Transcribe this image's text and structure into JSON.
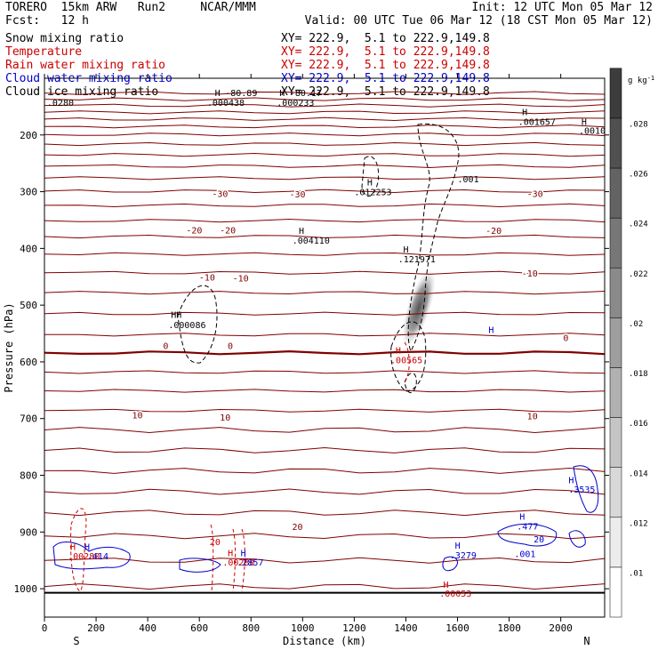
{
  "header": {
    "model": "TORERO",
    "grid": "15km ARW",
    "run": "Run2",
    "org": "NCAR/MMM",
    "init": "Init: 12 UTC Mon 05 Mar 12",
    "fcst": "Fcst:",
    "fcst_value": "12 h",
    "valid": "Valid: 00 UTC Tue 06 Mar 12 (18 CST Mon 05 Mar 12)"
  },
  "fields": [
    {
      "name": "Snow mixing ratio",
      "color": "#000000",
      "xy": "XY= 222.9,  5.1 to 222.9,149.8",
      "xy_color": "#000000"
    },
    {
      "name": "Temperature",
      "color": "#cc0000",
      "xy": "XY= 222.9,  5.1 to 222.9,149.8",
      "xy_color": "#cc0000"
    },
    {
      "name": "Rain water mixing ratio",
      "color": "#cc0000",
      "xy": "XY= 222.9,  5.1 to 222.9,149.8",
      "xy_color": "#cc0000"
    },
    {
      "name": "Cloud water mixing ratio",
      "color": "#0000cc",
      "xy": "XY= 222.9,  5.1 to 222.9,149.8",
      "xy_color": "#0000cc"
    },
    {
      "name": "Cloud ice mixing ratio",
      "color": "#000000",
      "xy": "XY= 222.9,  5.1 to 222.9,149.8",
      "xy_color": "#000000"
    }
  ],
  "chart_data": {
    "type": "contour cross-section",
    "xlabel": "Distance (km)",
    "ylabel": "Pressure (hPa)",
    "xlim": [
      0,
      2170
    ],
    "ylim": [
      1050,
      100
    ],
    "x_ticks": [
      0,
      200,
      400,
      600,
      800,
      1000,
      1200,
      1400,
      1600,
      1800,
      2000
    ],
    "y_ticks": [
      200,
      300,
      400,
      500,
      600,
      700,
      800,
      900,
      1000
    ],
    "left_end_label": "S",
    "right_end_label": "N",
    "colorbar": {
      "unit": "g kg",
      "unit_superscript": "-1",
      "ticks": [
        ".01",
        ".012",
        ".014",
        ".016",
        ".018",
        ".02",
        ".022",
        ".024",
        ".026",
        ".028"
      ]
    },
    "temperature_labels": [
      {
        "text": "-30",
        "x": 680,
        "p": 303
      },
      {
        "text": "-30",
        "x": 980,
        "p": 304
      },
      {
        "text": "-30",
        "x": 1900,
        "p": 303
      },
      {
        "text": "-20",
        "x": 580,
        "p": 367
      },
      {
        "text": "-20",
        "x": 710,
        "p": 367
      },
      {
        "text": "-20",
        "x": 1740,
        "p": 368
      },
      {
        "text": "-10",
        "x": 630,
        "p": 450
      },
      {
        "text": "-10",
        "x": 760,
        "p": 452
      },
      {
        "text": "-10",
        "x": 1880,
        "p": 443
      },
      {
        "text": "0",
        "x": 470,
        "p": 571
      },
      {
        "text": "0",
        "x": 720,
        "p": 571
      },
      {
        "text": "0",
        "x": 2020,
        "p": 557
      },
      {
        "text": "10",
        "x": 360,
        "p": 693
      },
      {
        "text": "10",
        "x": 700,
        "p": 697
      },
      {
        "text": "10",
        "x": 1890,
        "p": 695
      },
      {
        "text": "20",
        "x": 980,
        "p": 890
      }
    ],
    "annotations": [
      {
        "text": "H",
        "x": 660,
        "p": 125,
        "color": "#000000"
      },
      {
        "text": "-80.89",
        "x": 700,
        "p": 125,
        "color": "#000000"
      },
      {
        "text": "H",
        "x": 910,
        "p": 125,
        "color": "#000000"
      },
      {
        "text": "-80.17",
        "x": 950,
        "p": 125,
        "color": "#000000"
      },
      {
        "text": ".000438",
        "x": 630,
        "p": 142,
        "color": "#000000"
      },
      {
        "text": ".000233",
        "x": 900,
        "p": 142,
        "color": "#000000"
      },
      {
        "text": ".0280",
        "x": 10,
        "p": 142,
        "color": "#000000"
      },
      {
        "text": "H",
        "x": 1850,
        "p": 159,
        "color": "#000000"
      },
      {
        "text": ".001657",
        "x": 1835,
        "p": 176,
        "color": "#000000"
      },
      {
        "text": "H",
        "x": 2080,
        "p": 176,
        "color": "#000000"
      },
      {
        "text": ".0010",
        "x": 2070,
        "p": 192,
        "color": "#000000"
      },
      {
        "text": "H",
        "x": 1250,
        "p": 283,
        "color": "#000000"
      },
      {
        "text": ".012253",
        "x": 1200,
        "p": 300,
        "color": "#000000"
      },
      {
        "text": ".001",
        "x": 1600,
        "p": 277,
        "color": "#000000"
      },
      {
        "text": "H",
        "x": 985,
        "p": 368,
        "color": "#000000"
      },
      {
        "text": ".004110",
        "x": 960,
        "p": 385,
        "color": "#000000"
      },
      {
        "text": "H",
        "x": 1390,
        "p": 401,
        "color": "#000000"
      },
      {
        "text": ".121971",
        "x": 1370,
        "p": 418,
        "color": "#000000"
      },
      {
        "text": "HH",
        "x": 490,
        "p": 516,
        "color": "#000000"
      },
      {
        "text": ".000086",
        "x": 480,
        "p": 534,
        "color": "#000000"
      },
      {
        "text": "H",
        "x": 1360,
        "p": 579,
        "color": "#cc0000"
      },
      {
        "text": ".00565",
        "x": 1340,
        "p": 596,
        "color": "#cc0000"
      },
      {
        "text": "H",
        "x": 1720,
        "p": 543,
        "color": "#0000cc"
      },
      {
        "text": ".3535",
        "x": 2030,
        "p": 824,
        "color": "#0000cc"
      },
      {
        "text": "H",
        "x": 2030,
        "p": 808,
        "color": "#0000cc"
      },
      {
        "text": "H",
        "x": 1840,
        "p": 872,
        "color": "#0000cc"
      },
      {
        "text": ".477",
        "x": 1830,
        "p": 889,
        "color": "#0000cc"
      },
      {
        "text": "H",
        "x": 1590,
        "p": 923,
        "color": "#0000cc"
      },
      {
        "text": ".3279",
        "x": 1570,
        "p": 940,
        "color": "#0000cc"
      },
      {
        "text": ".001",
        "x": 1820,
        "p": 938,
        "color": "#0000cc"
      },
      {
        "text": "H",
        "x": 1545,
        "p": 992,
        "color": "#cc0000"
      },
      {
        "text": ".00053",
        "x": 1530,
        "p": 1008,
        "color": "#cc0000"
      },
      {
        "text": "H",
        "x": 100,
        "p": 925,
        "color": "#cc0000"
      },
      {
        "text": "H",
        "x": 155,
        "p": 925,
        "color": "#0000cc"
      },
      {
        "text": ".00280",
        "x": 90,
        "p": 942,
        "color": "#cc0000"
      },
      {
        "text": ".414",
        "x": 165,
        "p": 942,
        "color": "#0000cc"
      },
      {
        "text": "20",
        "x": 640,
        "p": 917,
        "color": "#cc0000"
      },
      {
        "text": "H",
        "x": 710,
        "p": 936,
        "color": "#cc0000"
      },
      {
        "text": "H",
        "x": 760,
        "p": 936,
        "color": "#0000cc"
      },
      {
        "text": ".00280",
        "x": 690,
        "p": 953,
        "color": "#cc0000"
      },
      {
        "text": ".2857",
        "x": 745,
        "p": 953,
        "color": "#0000cc"
      },
      {
        "text": "20",
        "x": 1895,
        "p": 912,
        "color": "#0000cc"
      }
    ]
  }
}
